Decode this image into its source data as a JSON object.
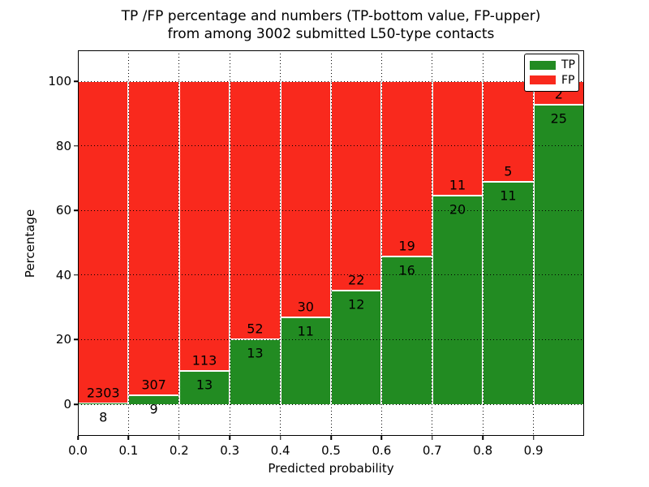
{
  "chart_data": {
    "type": "bar",
    "stacked": true,
    "normalized": "percent",
    "title_lines": [
      "TP /FP percentage and numbers (TP-bottom value, FP-upper)",
      "from among 3002 submitted L50-type contacts"
    ],
    "xlabel": "Predicted probability",
    "ylabel": "Percentage",
    "total_submitted": 3002,
    "x_bin_edges": [
      0.0,
      0.1,
      0.2,
      0.3,
      0.4,
      0.5,
      0.6,
      0.7,
      0.8,
      0.9,
      1.0
    ],
    "x_tick_labels": [
      "0.0",
      "0.1",
      "0.2",
      "0.3",
      "0.4",
      "0.5",
      "0.6",
      "0.7",
      "0.8",
      "0.9"
    ],
    "y_ticks": [
      0,
      20,
      40,
      60,
      80,
      100
    ],
    "ylim": [
      -10,
      110
    ],
    "grid": "dotted",
    "legend_position": "upper right",
    "series": [
      {
        "name": "TP",
        "color": "#228b22",
        "counts": [
          8,
          9,
          13,
          13,
          11,
          12,
          16,
          20,
          11,
          25
        ]
      },
      {
        "name": "FP",
        "color": "#f9291d",
        "counts": [
          2303,
          307,
          113,
          52,
          30,
          22,
          19,
          11,
          5,
          2
        ]
      }
    ],
    "tp_percent_of_bin": [
      0.35,
      2.85,
      10.32,
      20.0,
      26.83,
      35.29,
      45.71,
      64.52,
      68.75,
      92.59
    ]
  }
}
